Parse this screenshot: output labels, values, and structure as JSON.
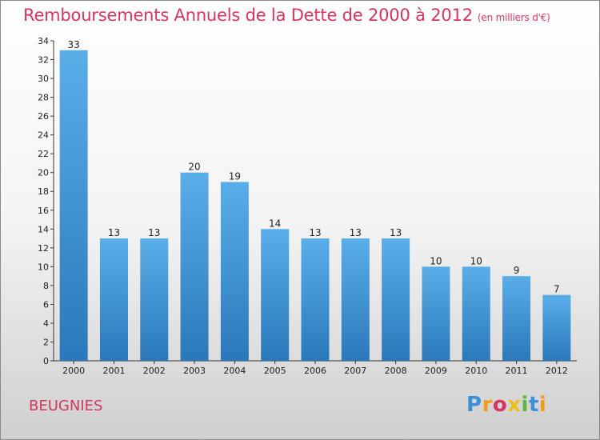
{
  "header": {
    "title": "Remboursements Annuels de la Dette de 2000 à 2012",
    "subtitle": "(en milliers d'€)"
  },
  "commune": "BEUGNIES",
  "logo": {
    "letters": [
      {
        "ch": "P",
        "color": "#3a8fd6"
      },
      {
        "ch": "r",
        "color": "#f29a1c"
      },
      {
        "ch": "o",
        "color": "#d4365f"
      },
      {
        "ch": "x",
        "color": "#e8c01a"
      },
      {
        "ch": "i",
        "color": "#5cb83a"
      },
      {
        "ch": "t",
        "color": "#3a8fd6"
      },
      {
        "ch": "i",
        "color": "#f29a1c"
      }
    ]
  },
  "chart_data": {
    "type": "bar",
    "title": "Remboursements Annuels de la Dette de 2000 à 2012",
    "subtitle": "(en milliers d'€)",
    "categories": [
      "2000",
      "2001",
      "2002",
      "2003",
      "2004",
      "2005",
      "2006",
      "2007",
      "2008",
      "2009",
      "2010",
      "2011",
      "2012"
    ],
    "values": [
      33,
      13,
      13,
      20,
      19,
      14,
      13,
      13,
      13,
      10,
      10,
      9,
      7
    ],
    "ylim": [
      0,
      34
    ],
    "yticks": [
      0,
      2,
      4,
      6,
      8,
      10,
      12,
      14,
      16,
      18,
      20,
      22,
      24,
      26,
      28,
      30,
      32,
      34
    ],
    "grid": false,
    "bar_color_top": "#5aaee8",
    "bar_color_bottom": "#2a78bb",
    "text_color": "#d4365f"
  }
}
